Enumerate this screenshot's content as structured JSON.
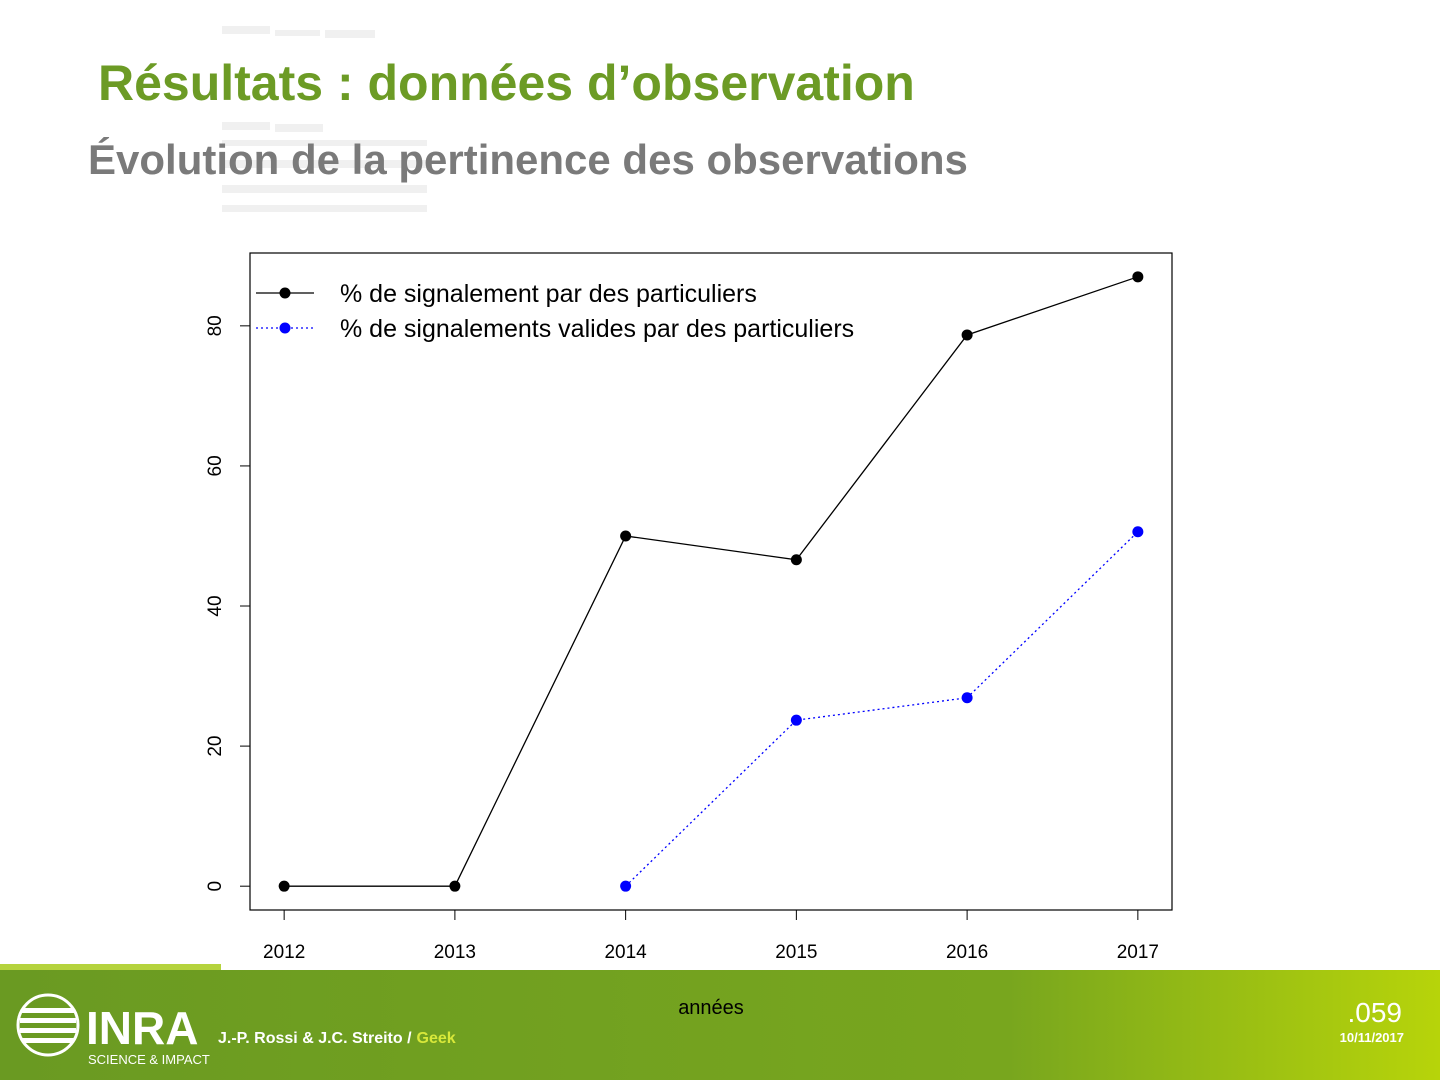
{
  "slide": {
    "title": "Résultats : données d’observation",
    "subtitle": "Évolution de la pertinence des observations",
    "logo": {
      "name": "INRA",
      "tagline": "SCIENCE & IMPACT"
    },
    "footer": {
      "authors": "J.-P. Rossi & J.C. Streito /",
      "project": "Geek",
      "page": ".059",
      "date": "10/11/2017"
    }
  },
  "chart_data": {
    "type": "line",
    "xlabel": "années",
    "x": [
      2012,
      2013,
      2014,
      2015,
      2016,
      2017
    ],
    "series": [
      {
        "name": "% de signalement par des particuliers",
        "color": "#000000",
        "dash": "solid",
        "values": [
          0,
          0,
          50,
          46.6,
          78.7,
          87
        ]
      },
      {
        "name": "% de signalements valides par des particuliers",
        "color": "#0000ff",
        "dash": "dotted",
        "values": [
          null,
          null,
          0,
          23.7,
          26.9,
          50.6
        ]
      }
    ],
    "xlim": [
      2011.8,
      2017.2
    ],
    "xticks": [
      2012,
      2013,
      2014,
      2015,
      2016,
      2017
    ],
    "ylim": [
      -3.4,
      90.4
    ],
    "yticks": [
      0,
      20,
      40,
      60,
      80
    ],
    "grid": false,
    "legend": "top-left"
  }
}
